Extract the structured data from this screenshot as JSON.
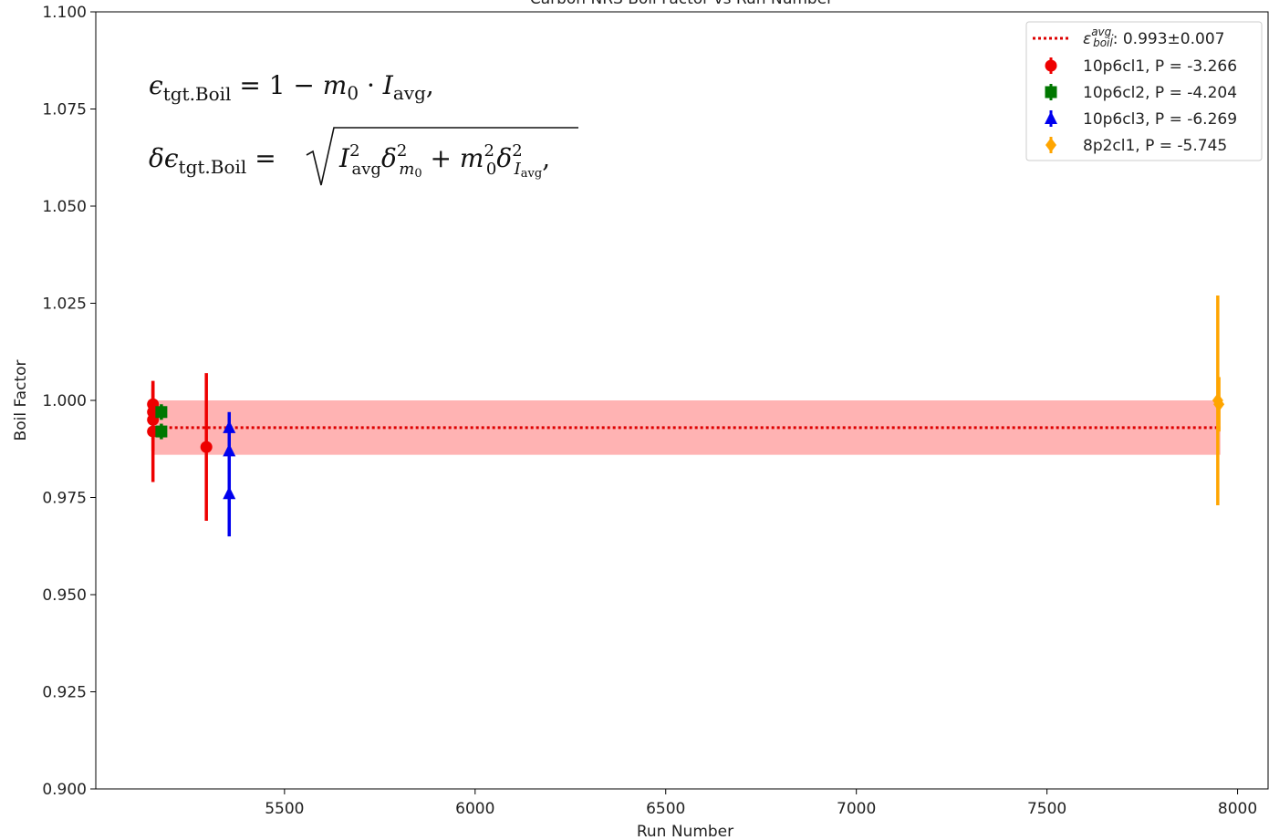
{
  "chart_data": {
    "type": "scatter",
    "title": "Carbon NRS Boil Factor vs Run Number",
    "xlabel": "Run Number",
    "ylabel": "Boil Factor",
    "xlim": [
      5005,
      8080
    ],
    "ylim": [
      0.9,
      1.1
    ],
    "xticks": [
      5500,
      6000,
      6500,
      7000,
      7500,
      8000
    ],
    "yticks": [
      0.9,
      0.925,
      0.95,
      0.975,
      1.0,
      1.025,
      1.05,
      1.075,
      1.1
    ],
    "ytick_labels": [
      "0.900",
      "0.925",
      "0.950",
      "0.975",
      "1.000",
      "1.025",
      "1.050",
      "1.075",
      "1.100"
    ],
    "average": {
      "value": 0.993,
      "error": 0.007,
      "x_range": [
        5155,
        7955
      ],
      "color": "#dd0000",
      "band_color": "#ff9999",
      "label_main": "ε",
      "label_sup": "avg.",
      "label_sub": "boil",
      "label_value": ": 0.993±0.007"
    },
    "series": [
      {
        "name": "10p6cl1, P = -3.266",
        "color": "#ee0000",
        "marker": "circle",
        "points": [
          {
            "x": 5155,
            "y": 0.999,
            "err": 0.006
          },
          {
            "x": 5155,
            "y": 0.997,
            "err": 0.007
          },
          {
            "x": 5155,
            "y": 0.995,
            "err": 0.008
          },
          {
            "x": 5155,
            "y": 0.992,
            "err": 0.013
          },
          {
            "x": 5295,
            "y": 0.988,
            "err": 0.019
          }
        ]
      },
      {
        "name": "10p6cl2, P = -4.204",
        "color": "#007700",
        "marker": "square",
        "points": [
          {
            "x": 5177,
            "y": 0.997,
            "err": 0.002
          },
          {
            "x": 5177,
            "y": 0.992,
            "err": 0.002
          }
        ]
      },
      {
        "name": "10p6cl3, P = -6.269",
        "color": "#0000ee",
        "marker": "triangle",
        "points": [
          {
            "x": 5355,
            "y": 0.993,
            "err": 0.004
          },
          {
            "x": 5355,
            "y": 0.987,
            "err": 0.006
          },
          {
            "x": 5355,
            "y": 0.976,
            "err": 0.011
          }
        ]
      },
      {
        "name": "8p2cl1, P = -5.745",
        "color": "#ffa500",
        "marker": "diamond",
        "points": [
          {
            "x": 7948,
            "y": 1.0,
            "err": 0.027
          },
          {
            "x": 7951,
            "y": 0.999,
            "err": 0.007
          }
        ]
      }
    ],
    "legend_position": "top-right",
    "grid": false,
    "equations": {
      "eq1": "ϵtgt.Boil = 1 − m0 · Iavg,",
      "eq2": "δϵtgt.Boil = √(Iavg² δm0² + m0² δIavg²),"
    }
  }
}
